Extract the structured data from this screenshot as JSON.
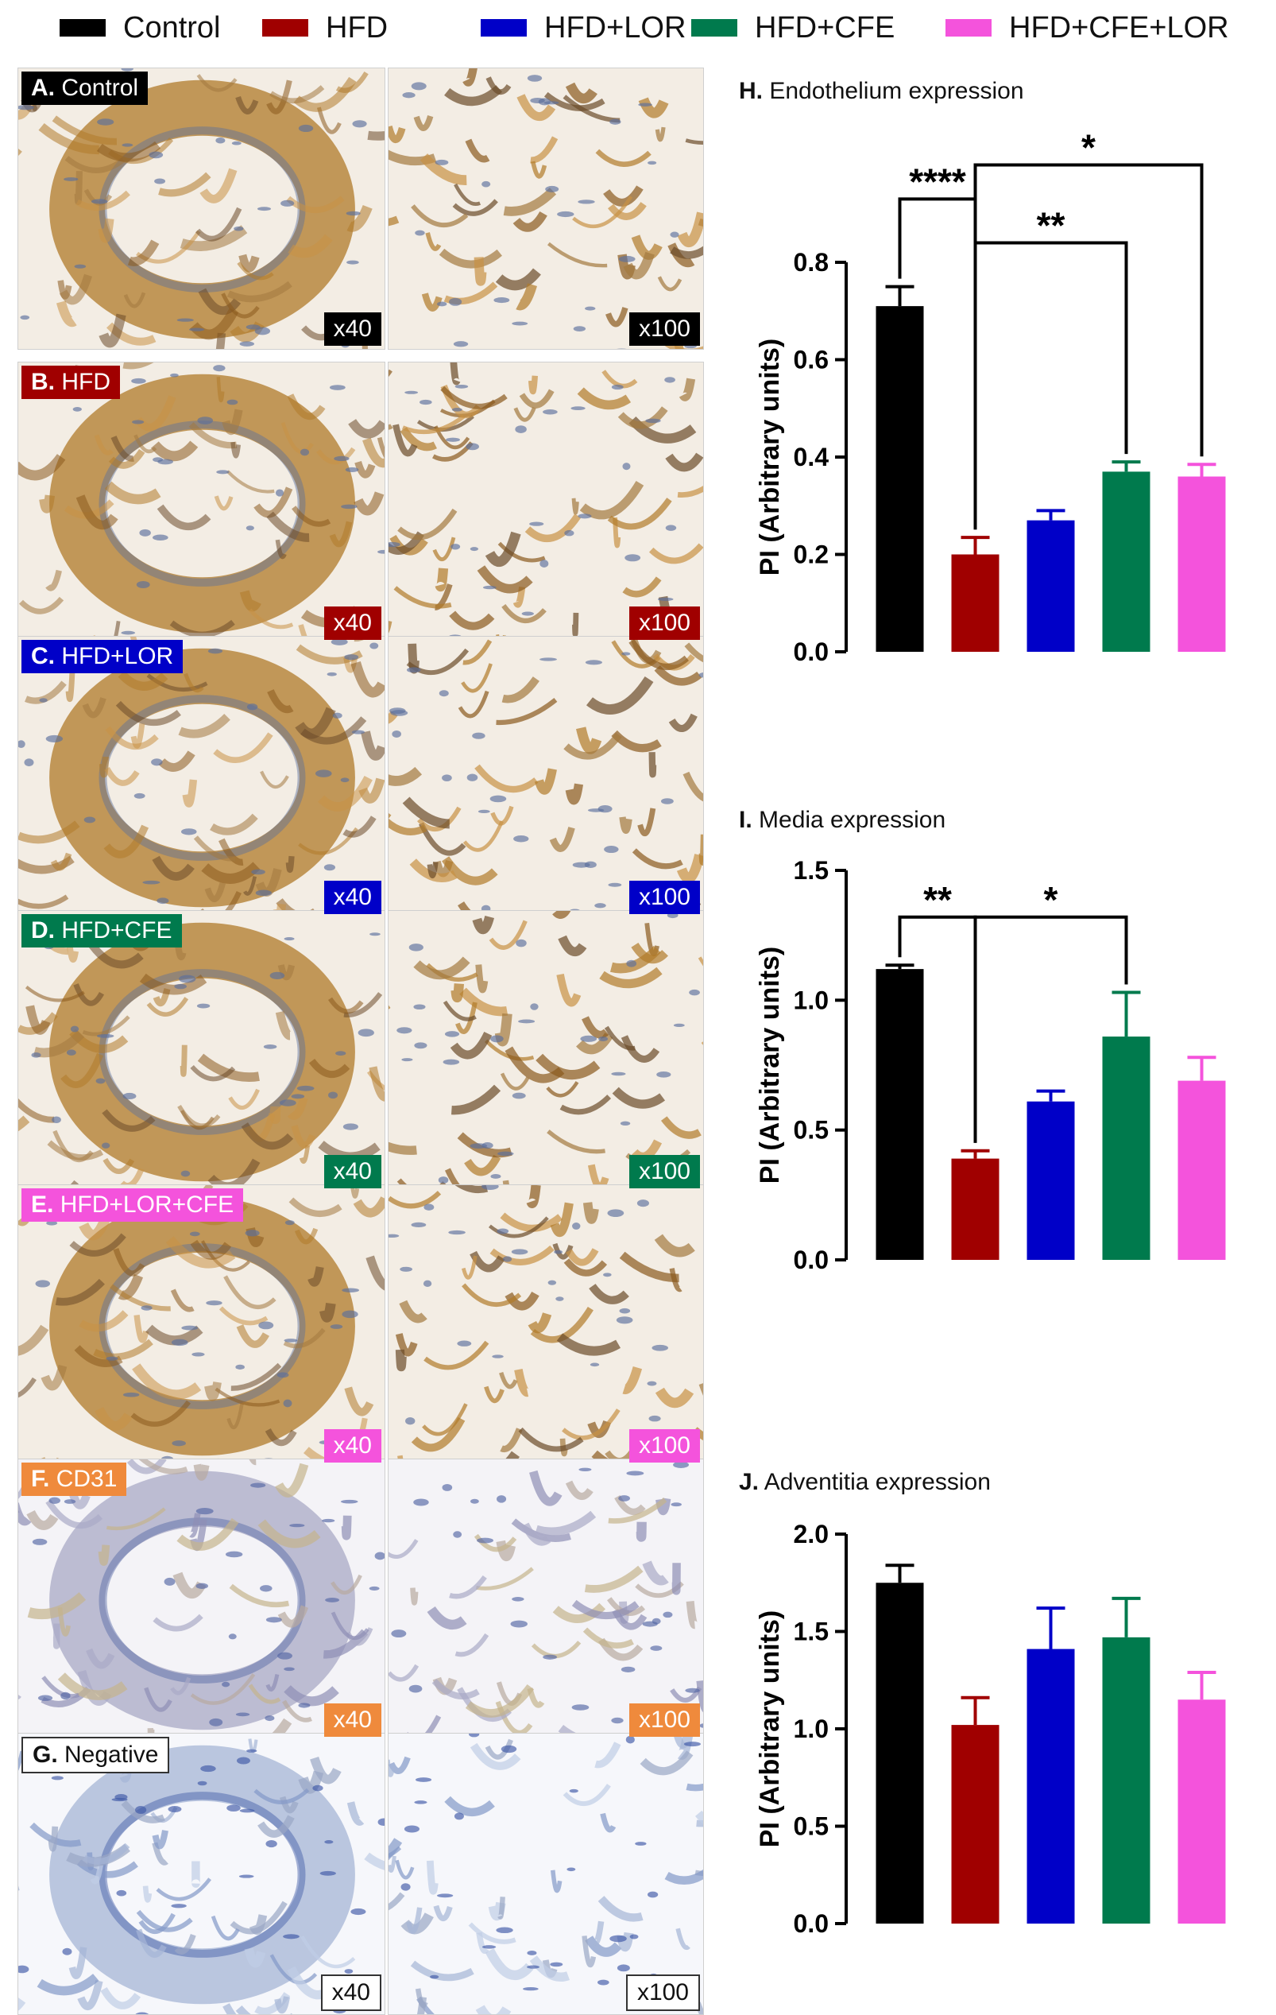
{
  "legend": [
    {
      "label": "Control",
      "color": "#000000"
    },
    {
      "label": "HFD",
      "color": "#a00000"
    },
    {
      "label": "HFD+LOR",
      "color": "#0000c8"
    },
    {
      "label": "HFD+CFE",
      "color": "#007a4d"
    },
    {
      "label": "HFD+CFE+LOR",
      "color": "#f453dc"
    }
  ],
  "panels": [
    {
      "letter": "A.",
      "name": "Control",
      "color": "#000000",
      "mag1": "x40",
      "mag2": "x100",
      "stain": "brown"
    },
    {
      "letter": "B.",
      "name": "HFD",
      "color": "#a00000",
      "mag1": "x40",
      "mag2": "x100",
      "stain": "brown"
    },
    {
      "letter": "C.",
      "name": "HFD+LOR",
      "color": "#0000c8",
      "mag1": "x40",
      "mag2": "x100",
      "stain": "brown"
    },
    {
      "letter": "D.",
      "name": "HFD+CFE",
      "color": "#007a4d",
      "mag1": "x40",
      "mag2": "x100",
      "stain": "brown"
    },
    {
      "letter": "E.",
      "name": "HFD+LOR+CFE",
      "color": "#f453dc",
      "mag1": "x40",
      "mag2": "x100",
      "stain": "brown"
    },
    {
      "letter": "F.",
      "name": "CD31",
      "color": "#ef8a3c",
      "mag1": "x40",
      "mag2": "x100",
      "stain": "light"
    },
    {
      "letter": "G.",
      "name": "Negative",
      "color": "#ffffff",
      "mag1": "x40",
      "mag2": "x100",
      "stain": "blue"
    }
  ],
  "chart_data": [
    {
      "type": "bar",
      "title_letter": "H.",
      "title": "Endothelium expression",
      "ylabel": "PI (Arbitrary units)",
      "xlabel": "",
      "categories": [
        "Control",
        "HFD",
        "HFD+LOR",
        "HFD+CFE",
        "HFD+CFE+LOR"
      ],
      "colors": [
        "#000000",
        "#a00000",
        "#0000c8",
        "#007a4d",
        "#f453dc"
      ],
      "values": [
        0.71,
        0.2,
        0.27,
        0.37,
        0.36
      ],
      "errors": [
        0.04,
        0.035,
        0.02,
        0.02,
        0.025
      ],
      "ylim": [
        0,
        0.8
      ],
      "yticks": [
        "0.0",
        "0.2",
        "0.4",
        "0.6",
        "0.8"
      ],
      "significance": [
        {
          "from": 0,
          "to": 1,
          "label": "****",
          "level": 0.93
        },
        {
          "from": 1,
          "to": 3,
          "label": "**",
          "level": 0.84
        },
        {
          "from": 1,
          "to": 4,
          "label": "*",
          "level": 1.0
        }
      ]
    },
    {
      "type": "bar",
      "title_letter": "I.",
      "title": "Media expression",
      "ylabel": "PI (Arbitrary units)",
      "xlabel": "",
      "categories": [
        "Control",
        "HFD",
        "HFD+LOR",
        "HFD+CFE",
        "HFD+CFE+LOR"
      ],
      "colors": [
        "#000000",
        "#a00000",
        "#0000c8",
        "#007a4d",
        "#f453dc"
      ],
      "values": [
        1.12,
        0.39,
        0.61,
        0.86,
        0.69
      ],
      "errors": [
        0.015,
        0.03,
        0.04,
        0.17,
        0.09
      ],
      "ylim": [
        0,
        1.5
      ],
      "yticks": [
        "0.0",
        "0.5",
        "1.0",
        "1.5"
      ],
      "significance": [
        {
          "from": 0,
          "to": 1,
          "label": "**",
          "level": 1.32
        },
        {
          "from": 1,
          "to": 3,
          "label": "*",
          "level": 1.32
        }
      ]
    },
    {
      "type": "bar",
      "title_letter": "J.",
      "title": "Adventitia expression",
      "ylabel": "PI (Arbitrary units)",
      "xlabel": "",
      "categories": [
        "Control",
        "HFD",
        "HFD+LOR",
        "HFD+CFE",
        "HFD+CFE+LOR"
      ],
      "colors": [
        "#000000",
        "#a00000",
        "#0000c8",
        "#007a4d",
        "#f453dc"
      ],
      "values": [
        1.75,
        1.02,
        1.41,
        1.47,
        1.15
      ],
      "errors": [
        0.09,
        0.14,
        0.21,
        0.2,
        0.14
      ],
      "ylim": [
        0,
        2.0
      ],
      "yticks": [
        "0.0",
        "0.5",
        "1.0",
        "1.5",
        "2.0"
      ],
      "significance": []
    }
  ]
}
